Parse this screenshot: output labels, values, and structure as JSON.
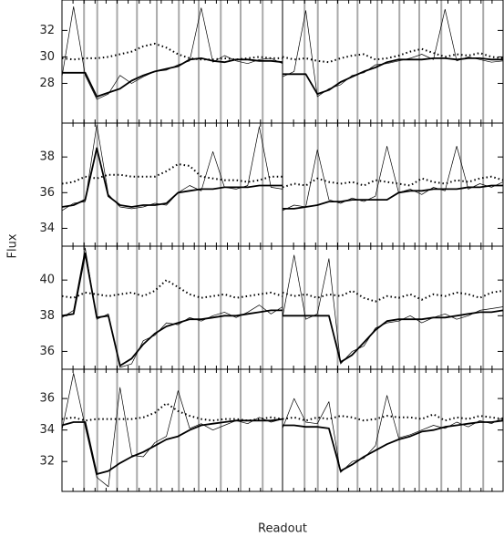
{
  "y_label": "Flux",
  "x_label": "Readout",
  "chart_data": [
    {
      "type": "line",
      "x": [
        0,
        1,
        2,
        3,
        4,
        5,
        6,
        7,
        8,
        9,
        10,
        11,
        12,
        13,
        14,
        15,
        16,
        17,
        18,
        19
      ],
      "xlim": [
        0,
        19
      ],
      "ylim": [
        25,
        34.3
      ],
      "yticks": [
        28,
        30,
        32
      ],
      "series": [
        {
          "style": "thin",
          "color": "#000000",
          "values": [
            28.5,
            33.8,
            28.6,
            26.8,
            27.2,
            28.6,
            28.0,
            28.5,
            28.9,
            29.0,
            29.4,
            29.7,
            33.7,
            29.6,
            30.1,
            29.7,
            29.5,
            29.8,
            29.9,
            29.5
          ]
        },
        {
          "style": "thick",
          "color": "#000000",
          "values": [
            28.8,
            28.8,
            28.8,
            27.0,
            27.3,
            27.6,
            28.2,
            28.6,
            28.9,
            29.1,
            29.3,
            29.8,
            29.9,
            29.7,
            29.6,
            29.8,
            29.8,
            29.7,
            29.7,
            29.6
          ]
        },
        {
          "style": "dotted",
          "color": "#000000",
          "values": [
            29.9,
            29.8,
            29.9,
            29.9,
            30.0,
            30.2,
            30.4,
            30.8,
            31.0,
            30.7,
            30.2,
            29.9,
            29.8,
            29.8,
            29.9,
            29.8,
            29.9,
            30.0,
            29.9,
            29.9
          ]
        }
      ]
    },
    {
      "type": "line",
      "x": [
        0,
        1,
        2,
        3,
        4,
        5,
        6,
        7,
        8,
        9,
        10,
        11,
        12,
        13,
        14,
        15,
        16,
        17,
        18,
        19
      ],
      "xlim": [
        0,
        19
      ],
      "ylim": [
        25,
        34.3
      ],
      "series": [
        {
          "style": "thin",
          "color": "#000000",
          "values": [
            28.5,
            28.9,
            33.5,
            27.0,
            27.6,
            27.9,
            28.6,
            28.8,
            29.4,
            29.5,
            29.7,
            29.9,
            30.2,
            29.8,
            33.6,
            29.7,
            30.0,
            29.8,
            29.6,
            29.7
          ]
        },
        {
          "style": "thick",
          "color": "#000000",
          "values": [
            28.7,
            28.7,
            28.7,
            27.2,
            27.5,
            28.1,
            28.5,
            28.9,
            29.2,
            29.6,
            29.8,
            29.8,
            29.8,
            29.9,
            29.9,
            29.8,
            29.9,
            29.9,
            29.8,
            29.8
          ]
        },
        {
          "style": "dotted",
          "color": "#000000",
          "values": [
            30.0,
            29.8,
            29.9,
            29.7,
            29.6,
            29.9,
            30.1,
            30.2,
            29.8,
            29.9,
            30.1,
            30.4,
            30.6,
            30.3,
            30.0,
            30.2,
            30.1,
            30.3,
            30.0,
            29.9
          ]
        }
      ]
    },
    {
      "type": "line",
      "x": [
        0,
        1,
        2,
        3,
        4,
        5,
        6,
        7,
        8,
        9,
        10,
        11,
        12,
        13,
        14,
        15,
        16,
        17,
        18,
        19
      ],
      "xlim": [
        0,
        19
      ],
      "ylim": [
        33,
        39.9
      ],
      "yticks": [
        34,
        36,
        38
      ],
      "series": [
        {
          "style": "thin",
          "color": "#000000",
          "values": [
            35.0,
            35.4,
            35.5,
            39.8,
            35.9,
            35.2,
            35.1,
            35.2,
            35.4,
            35.3,
            36.0,
            36.4,
            36.1,
            38.3,
            36.3,
            36.2,
            36.4,
            39.7,
            36.3,
            36.2
          ]
        },
        {
          "style": "thick",
          "color": "#000000",
          "values": [
            35.2,
            35.3,
            35.6,
            38.5,
            35.8,
            35.3,
            35.2,
            35.3,
            35.3,
            35.4,
            36.0,
            36.1,
            36.2,
            36.2,
            36.3,
            36.3,
            36.3,
            36.4,
            36.4,
            36.4
          ]
        },
        {
          "style": "dotted",
          "color": "#000000",
          "values": [
            36.5,
            36.6,
            36.9,
            36.8,
            37.0,
            37.0,
            36.9,
            36.9,
            36.9,
            37.2,
            37.6,
            37.5,
            36.9,
            36.8,
            36.7,
            36.7,
            36.6,
            36.7,
            36.9,
            36.9
          ]
        }
      ]
    },
    {
      "type": "line",
      "x": [
        0,
        1,
        2,
        3,
        4,
        5,
        6,
        7,
        8,
        9,
        10,
        11,
        12,
        13,
        14,
        15,
        16,
        17,
        18,
        19
      ],
      "xlim": [
        0,
        19
      ],
      "ylim": [
        33,
        39.9
      ],
      "series": [
        {
          "style": "thin",
          "color": "#000000",
          "values": [
            35.0,
            35.3,
            35.2,
            38.4,
            35.6,
            35.4,
            35.7,
            35.5,
            35.8,
            38.6,
            36.0,
            36.2,
            35.9,
            36.3,
            36.1,
            38.6,
            36.2,
            36.5,
            36.3,
            36.6
          ]
        },
        {
          "style": "thick",
          "color": "#000000",
          "values": [
            35.1,
            35.1,
            35.2,
            35.3,
            35.5,
            35.5,
            35.6,
            35.6,
            35.6,
            35.6,
            36.0,
            36.1,
            36.1,
            36.2,
            36.2,
            36.2,
            36.3,
            36.3,
            36.4,
            36.4
          ]
        },
        {
          "style": "dotted",
          "color": "#000000",
          "values": [
            36.3,
            36.5,
            36.4,
            36.8,
            36.6,
            36.5,
            36.6,
            36.4,
            36.7,
            36.6,
            36.5,
            36.4,
            36.8,
            36.6,
            36.5,
            36.7,
            36.6,
            36.8,
            36.9,
            36.7
          ]
        }
      ]
    },
    {
      "type": "line",
      "x": [
        0,
        1,
        2,
        3,
        4,
        5,
        6,
        7,
        8,
        9,
        10,
        11,
        12,
        13,
        14,
        15,
        16,
        17,
        18,
        19
      ],
      "xlim": [
        0,
        19
      ],
      "ylim": [
        35,
        41.9
      ],
      "yticks": [
        36,
        38,
        40
      ],
      "series": [
        {
          "style": "thin",
          "color": "#000000",
          "values": [
            37.9,
            38.3,
            41.8,
            37.8,
            38.1,
            35.1,
            35.3,
            36.6,
            36.9,
            37.6,
            37.5,
            37.9,
            37.7,
            38.0,
            38.2,
            37.9,
            38.2,
            38.6,
            38.1,
            38.5
          ]
        },
        {
          "style": "thick",
          "color": "#000000",
          "values": [
            38.0,
            38.1,
            41.5,
            37.9,
            38.0,
            35.2,
            35.6,
            36.4,
            37.0,
            37.4,
            37.6,
            37.8,
            37.8,
            37.9,
            38.0,
            38.0,
            38.1,
            38.2,
            38.3,
            38.3
          ]
        },
        {
          "style": "dotted",
          "color": "#000000",
          "values": [
            39.1,
            39.0,
            39.3,
            39.2,
            39.1,
            39.2,
            39.3,
            39.1,
            39.4,
            40.0,
            39.6,
            39.2,
            39.0,
            39.1,
            39.2,
            39.0,
            39.1,
            39.2,
            39.3,
            39.1
          ]
        }
      ]
    },
    {
      "type": "line",
      "x": [
        0,
        1,
        2,
        3,
        4,
        5,
        6,
        7,
        8,
        9,
        10,
        11,
        12,
        13,
        14,
        15,
        16,
        17,
        18,
        19
      ],
      "xlim": [
        0,
        19
      ],
      "ylim": [
        35,
        41.9
      ],
      "series": [
        {
          "style": "thin",
          "color": "#000000",
          "values": [
            37.9,
            41.4,
            37.8,
            38.1,
            41.2,
            35.3,
            36.0,
            36.3,
            37.3,
            37.6,
            37.7,
            38.0,
            37.6,
            37.9,
            38.1,
            37.8,
            38.0,
            38.3,
            38.4,
            38.5
          ]
        },
        {
          "style": "thick",
          "color": "#000000",
          "values": [
            38.0,
            38.0,
            38.0,
            38.0,
            38.0,
            35.4,
            35.8,
            36.5,
            37.2,
            37.7,
            37.8,
            37.8,
            37.8,
            37.9,
            37.9,
            38.0,
            38.1,
            38.2,
            38.2,
            38.3
          ]
        },
        {
          "style": "dotted",
          "color": "#000000",
          "values": [
            39.3,
            39.1,
            39.2,
            39.0,
            39.2,
            39.1,
            39.4,
            39.0,
            38.8,
            39.1,
            39.0,
            39.2,
            38.9,
            39.2,
            39.1,
            39.3,
            39.2,
            39.0,
            39.3,
            39.4
          ]
        }
      ]
    },
    {
      "type": "line",
      "x": [
        0,
        1,
        2,
        3,
        4,
        5,
        6,
        7,
        8,
        9,
        10,
        11,
        12,
        13,
        14,
        15,
        16,
        17,
        18,
        19
      ],
      "xlim": [
        0,
        19
      ],
      "ylim": [
        30.1,
        37.86
      ],
      "yticks": [
        32,
        34,
        36
      ],
      "series": [
        {
          "style": "thin",
          "color": "#000000",
          "values": [
            34.0,
            37.6,
            34.2,
            31.0,
            30.4,
            36.7,
            32.4,
            32.3,
            33.2,
            33.6,
            36.5,
            34.1,
            34.4,
            34.0,
            34.3,
            34.6,
            34.4,
            34.8,
            34.5,
            34.7
          ]
        },
        {
          "style": "thick",
          "color": "#000000",
          "values": [
            34.3,
            34.5,
            34.5,
            31.2,
            31.4,
            31.9,
            32.3,
            32.6,
            33.0,
            33.4,
            33.6,
            34.0,
            34.3,
            34.4,
            34.5,
            34.6,
            34.6,
            34.6,
            34.6,
            34.7
          ]
        },
        {
          "style": "dotted",
          "color": "#000000",
          "values": [
            34.7,
            34.8,
            34.6,
            34.7,
            34.7,
            34.7,
            34.7,
            34.8,
            35.1,
            35.7,
            35.2,
            34.9,
            34.7,
            34.6,
            34.7,
            34.7,
            34.6,
            34.7,
            34.8,
            34.7
          ]
        }
      ]
    },
    {
      "type": "line",
      "x": [
        0,
        1,
        2,
        3,
        4,
        5,
        6,
        7,
        8,
        9,
        10,
        11,
        12,
        13,
        14,
        15,
        16,
        17,
        18,
        19
      ],
      "xlim": [
        0,
        19
      ],
      "ylim": [
        30.1,
        37.86
      ],
      "series": [
        {
          "style": "thin",
          "color": "#000000",
          "values": [
            34.1,
            36.0,
            34.5,
            34.4,
            35.8,
            31.3,
            32.0,
            32.2,
            33.0,
            36.2,
            33.5,
            33.7,
            34.0,
            34.3,
            34.1,
            34.5,
            34.2,
            34.6,
            34.4,
            34.8
          ]
        },
        {
          "style": "thick",
          "color": "#000000",
          "values": [
            34.3,
            34.3,
            34.2,
            34.2,
            34.1,
            31.4,
            31.8,
            32.3,
            32.7,
            33.1,
            33.4,
            33.6,
            33.9,
            34.0,
            34.2,
            34.3,
            34.4,
            34.5,
            34.5,
            34.6
          ]
        },
        {
          "style": "dotted",
          "color": "#000000",
          "values": [
            34.7,
            34.8,
            34.6,
            34.8,
            34.7,
            34.9,
            34.8,
            34.6,
            34.7,
            34.9,
            34.8,
            34.8,
            34.7,
            35.0,
            34.6,
            34.8,
            34.7,
            34.9,
            34.8,
            34.7
          ]
        }
      ]
    }
  ]
}
